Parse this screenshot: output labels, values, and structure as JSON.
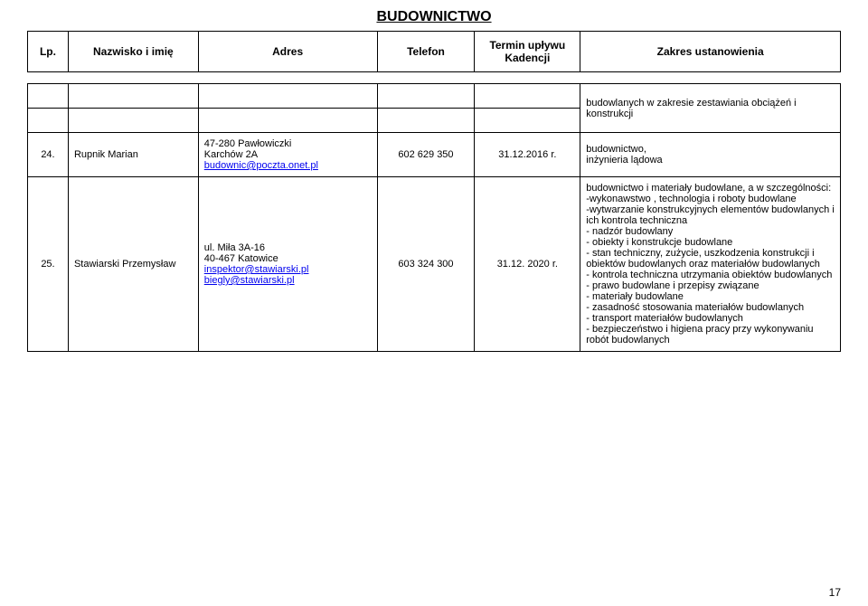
{
  "title": "BUDOWNICTWO",
  "columns": {
    "lp": "Lp.",
    "name": "Nazwisko i imię",
    "address": "Adres",
    "phone": "Telefon",
    "term": "Termin upływu Kadencji",
    "scope": "Zakres ustanowienia"
  },
  "col_widths": [
    "5%",
    "16%",
    "22%",
    "12%",
    "13%",
    "32%"
  ],
  "rows": [
    {
      "lp": "",
      "name": "",
      "address": "",
      "phone": "",
      "term": "",
      "scope_html": "budowlanych w zakresie zestawiania obciążeń i konstrukcji"
    },
    {
      "lp": "24.",
      "name": "Rupnik Marian",
      "address_lines": [
        "47-280 Pawłowiczki",
        "Karchów 2A"
      ],
      "address_link": "budownic@poczta.onet.pl",
      "phone": "602 629 350",
      "term": "31.12.2016 r.",
      "scope_lines": [
        "budownictwo,",
        "inżynieria lądowa"
      ]
    },
    {
      "lp": "25.",
      "name": "Stawiarski Przemysław",
      "address_lines": [
        "ul. Miła 3A-16",
        "40-467 Katowice"
      ],
      "address_links": [
        "inspektor@stawiarski.pl",
        "biegly@stawiarski.pl"
      ],
      "phone": "603 324 300",
      "term": "31.12. 2020 r.",
      "scope_block": [
        "budownictwo i materiały budowlane, a w szczególności:",
        "-wykonawstwo , technologia i roboty budowlane",
        "-wytwarzanie konstrukcyjnych elementów budowlanych i ich kontrola techniczna",
        "- nadzór budowlany",
        "- obiekty i konstrukcje budowlane",
        "- stan techniczny, zużycie, uszkodzenia konstrukcji i obiektów budowlanych oraz materiałów budowlanych",
        "- kontrola techniczna utrzymania obiektów budowlanych",
        "- prawo budowlane i przepisy związane",
        "- materiały budowlane",
        "- zasadność stosowania materiałów budowlanych",
        "- transport materiałów budowlanych",
        "- bezpieczeństwo i higiena pracy przy wykonywaniu robót budowlanych"
      ]
    }
  ],
  "page_number": "17"
}
